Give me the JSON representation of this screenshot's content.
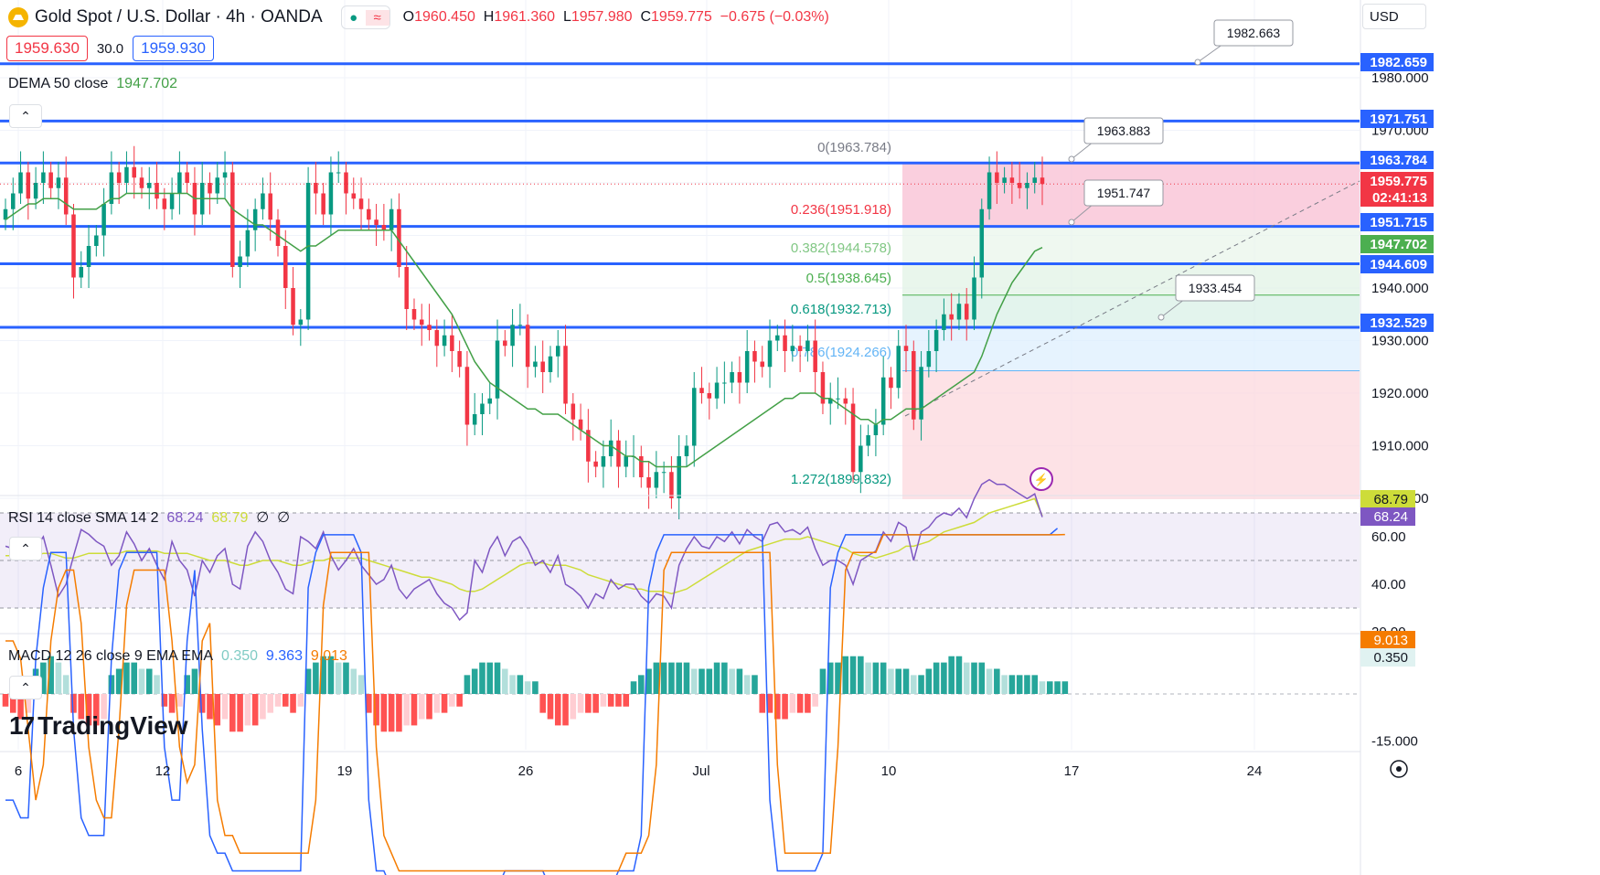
{
  "header": {
    "symbol_title": "Gold Spot / U.S. Dollar · 4h · OANDA",
    "open_label": "O",
    "open": "1960.450",
    "high_label": "H",
    "high": "1961.360",
    "low_label": "L",
    "low": "1957.980",
    "close_label": "C",
    "close": "1959.775",
    "change": "−0.675 (−0.03%)",
    "pill_icons": [
      "dot-icon",
      "wave-icon"
    ],
    "bid": "1959.630",
    "spread": "30.0",
    "ask": "1959.930",
    "currency": "USD"
  },
  "indicators": {
    "dema": {
      "label": "DEMA 50 close",
      "value": "1947.702"
    },
    "rsi": {
      "label": "RSI 14 close SMA 14 2",
      "rsi_value": "68.24",
      "sma_value": "68.79",
      "extra1": "∅",
      "extra2": "∅"
    },
    "macd": {
      "label": "MACD 12 26 close 9 EMA EMA",
      "hist": "0.350",
      "macd": "9.363",
      "signal": "9.013"
    }
  },
  "fib_labels": [
    {
      "text": "0(1963.784)",
      "color": "#787b86"
    },
    {
      "text": "0.236(1951.918)",
      "color": "#f23645"
    },
    {
      "text": "0.382(1944.578)",
      "color": "#81c784"
    },
    {
      "text": "0.5(1938.645)",
      "color": "#4caf50"
    },
    {
      "text": "0.618(1932.713)",
      "color": "#089981"
    },
    {
      "text": "0.786(1924.266)",
      "color": "#64b5f6"
    },
    {
      "text": "1.272(1899.832)",
      "color": "#089981"
    }
  ],
  "callouts": [
    "1982.663",
    "1963.883",
    "1951.747",
    "1933.454"
  ],
  "price_axis": {
    "ticks": [
      "1980.000",
      "1970.000",
      "1940.000",
      "1930.000",
      "1920.000",
      "1910.000",
      "1900.000"
    ],
    "markers": [
      {
        "value": "1982.659",
        "bg": "#2962ff"
      },
      {
        "value": "1971.751",
        "bg": "#2962ff"
      },
      {
        "value": "1963.784",
        "bg": "#2962ff"
      },
      {
        "value": "1959.775",
        "bg": "#f23645"
      },
      {
        "value": "02:41:13",
        "bg": "#f23645"
      },
      {
        "value": "1951.715",
        "bg": "#2962ff"
      },
      {
        "value": "1947.702",
        "bg": "#4caf50"
      },
      {
        "value": "1944.609",
        "bg": "#2962ff"
      },
      {
        "value": "1932.529",
        "bg": "#2962ff"
      }
    ]
  },
  "rsi_axis": {
    "ticks": [
      "60.00",
      "40.00",
      "20.00"
    ],
    "markers": [
      {
        "value": "68.79",
        "bg": "#cddc39",
        "fg": "#131722"
      },
      {
        "value": "68.24",
        "bg": "#7e57c2",
        "fg": "#ffffff"
      }
    ]
  },
  "macd_axis": {
    "ticks": [
      "-15.000"
    ],
    "markers": [
      {
        "value": "9.013",
        "bg": "#f57c00",
        "fg": "#ffffff"
      },
      {
        "value": "0.350",
        "bg": "#e0f2f1",
        "fg": "#131722"
      }
    ]
  },
  "time_axis": [
    "6",
    "12",
    "19",
    "26",
    "Jul",
    "10",
    "17",
    "24"
  ],
  "logo": "TradingView",
  "colors": {
    "up": "#089981",
    "down": "#f23645",
    "level": "#2962ff",
    "dema": "#43a047",
    "rsi": "#7e57c2",
    "rsi_sma": "#cddc39",
    "macd": "#2962ff",
    "signal": "#f57c00"
  },
  "chart_data": {
    "type": "candlestick",
    "y_range": [
      1898,
      1990
    ],
    "levels": [
      1982.659,
      1971.751,
      1963.784,
      1951.715,
      1944.609,
      1932.529
    ],
    "fib_levels": [
      1963.784,
      1951.918,
      1944.578,
      1938.645,
      1932.713,
      1924.266,
      1899.832
    ],
    "close_series": [
      1955,
      1958,
      1962,
      1957,
      1960,
      1962,
      1959,
      1961,
      1954,
      1942,
      1944,
      1948,
      1950,
      1956,
      1962,
      1960,
      1963,
      1961,
      1959,
      1960,
      1957,
      1955,
      1958,
      1962,
      1960,
      1954,
      1960,
      1958,
      1961,
      1962,
      1944,
      1946,
      1951,
      1955,
      1958,
      1953,
      1948,
      1940,
      1933,
      1934,
      1960,
      1958,
      1954,
      1962,
      1962,
      1958,
      1957,
      1955,
      1953,
      1952,
      1951,
      1955,
      1944,
      1936,
      1934,
      1933,
      1932,
      1929,
      1931,
      1928,
      1925,
      1914,
      1916,
      1918,
      1919,
      1930,
      1929,
      1933,
      1933,
      1925,
      1926,
      1924,
      1927,
      1929,
      1918,
      1915,
      1913,
      1907,
      1906,
      1908,
      1911,
      1906,
      1908,
      1908,
      1904,
      1902,
      1905,
      1905,
      1900,
      1908,
      1910,
      1921,
      1920,
      1919,
      1922,
      1922,
      1924,
      1922,
      1928,
      1926,
      1925,
      1930,
      1931,
      1928,
      1929,
      1928,
      1930,
      1924,
      1918,
      1919,
      1919,
      1918,
      1905,
      1910,
      1912,
      1914,
      1923,
      1921,
      1929,
      1928,
      1915,
      1925,
      1928,
      1932,
      1935,
      1934,
      1937,
      1934,
      1942,
      1955,
      1962,
      1960,
      1961,
      1960,
      1959,
      1960,
      1961,
      1959.775
    ],
    "dema_series": [
      1953,
      1954,
      1955,
      1956,
      1956,
      1957,
      1957,
      1957,
      1956,
      1955,
      1955,
      1955,
      1955,
      1956,
      1957,
      1957,
      1958,
      1958,
      1958,
      1958,
      1958,
      1958,
      1958,
      1958,
      1958,
      1957,
      1957,
      1957,
      1957,
      1957,
      1955,
      1954,
      1953,
      1952,
      1952,
      1951,
      1950,
      1949,
      1948,
      1947,
      1948,
      1948,
      1949,
      1950,
      1951,
      1951,
      1951,
      1951,
      1951,
      1951,
      1951,
      1951,
      1949,
      1947,
      1945,
      1943,
      1941,
      1939,
      1937,
      1935,
      1932,
      1929,
      1926,
      1924,
      1922,
      1921,
      1920,
      1919,
      1918,
      1917,
      1917,
      1916,
      1916,
      1916,
      1915,
      1914,
      1913,
      1912,
      1911,
      1910,
      1910,
      1909,
      1908,
      1908,
      1907,
      1907,
      1906,
      1906,
      1906,
      1906,
      1906,
      1907,
      1908,
      1909,
      1910,
      1911,
      1912,
      1913,
      1914,
      1915,
      1916,
      1917,
      1918,
      1919,
      1919,
      1920,
      1920,
      1920,
      1919,
      1919,
      1918,
      1917,
      1916,
      1915,
      1915,
      1914,
      1915,
      1915,
      1916,
      1917,
      1917,
      1917,
      1918,
      1919,
      1920,
      1921,
      1922,
      1923,
      1924,
      1927,
      1931,
      1935,
      1938,
      1941,
      1943,
      1945,
      1947,
      1947.702
    ],
    "rsi_series": [
      56,
      55,
      57,
      52,
      55,
      60,
      48,
      35,
      40,
      52,
      63,
      61,
      58,
      56,
      48,
      52,
      62,
      57,
      50,
      55,
      48,
      42,
      58,
      50,
      46,
      35,
      50,
      45,
      52,
      55,
      40,
      38,
      56,
      62,
      58,
      50,
      45,
      38,
      36,
      60,
      58,
      55,
      62,
      52,
      46,
      50,
      55,
      48,
      44,
      40,
      42,
      48,
      38,
      34,
      38,
      40,
      42,
      36,
      32,
      30,
      25,
      28,
      50,
      45,
      55,
      60,
      52,
      58,
      60,
      55,
      48,
      50,
      45,
      52,
      40,
      38,
      35,
      30,
      36,
      34,
      42,
      38,
      40,
      40,
      35,
      32,
      36,
      35,
      30,
      48,
      55,
      60,
      56,
      55,
      60,
      58,
      62,
      57,
      63,
      60,
      58,
      65,
      66,
      62,
      63,
      61,
      64,
      55,
      48,
      50,
      50,
      48,
      40,
      50,
      52,
      54,
      62,
      58,
      66,
      64,
      50,
      62,
      64,
      68,
      70,
      69,
      72,
      68,
      76,
      82,
      84,
      82,
      82,
      80,
      78,
      76,
      78,
      68.24
    ],
    "rsi_sma_series": [
      52,
      52,
      52,
      52,
      52,
      53,
      53,
      52,
      51,
      51,
      52,
      53,
      53,
      53,
      53,
      53,
      54,
      54,
      54,
      54,
      54,
      53,
      53,
      53,
      53,
      52,
      51,
      50,
      50,
      50,
      49,
      48,
      48,
      49,
      50,
      50,
      50,
      49,
      48,
      48,
      49,
      50,
      50,
      51,
      51,
      51,
      51,
      51,
      50,
      49,
      48,
      47,
      46,
      45,
      44,
      43,
      43,
      42,
      41,
      40,
      38,
      37,
      37,
      38,
      40,
      42,
      44,
      46,
      48,
      49,
      49,
      49,
      48,
      48,
      48,
      47,
      46,
      44,
      43,
      42,
      41,
      40,
      39,
      38,
      38,
      37,
      37,
      37,
      36,
      37,
      38,
      40,
      42,
      44,
      46,
      48,
      50,
      52,
      54,
      55,
      56,
      57,
      58,
      59,
      59,
      59,
      60,
      59,
      58,
      57,
      56,
      55,
      53,
      52,
      52,
      51,
      52,
      53,
      54,
      56,
      56,
      57,
      58,
      60,
      62,
      63,
      64,
      65,
      66,
      68,
      70,
      71,
      72,
      73,
      74,
      75,
      76,
      68.79
    ],
    "macd_hist_series": [
      -2,
      -3,
      -4,
      -3,
      4,
      5,
      6,
      5,
      3,
      -3,
      -4,
      -5,
      -5,
      -4,
      3,
      4,
      5,
      5,
      4,
      4,
      3,
      -2,
      -3,
      -2,
      3,
      4,
      -3,
      -4,
      -5,
      -4,
      -6,
      -6,
      -5,
      -5,
      -4,
      -3,
      -2,
      -2,
      -3,
      -2,
      4,
      5,
      6,
      6,
      5,
      5,
      4,
      3,
      -3,
      -5,
      -6,
      -6,
      -6,
      -5,
      -5,
      -4,
      -4,
      -3,
      -3,
      -2,
      -2,
      3,
      4,
      5,
      5,
      5,
      4,
      3,
      3,
      2,
      2,
      -3,
      -4,
      -5,
      -5,
      -4,
      -3,
      -3,
      -3,
      -2,
      -2,
      -2,
      -2,
      2,
      3,
      4,
      5,
      5,
      5,
      5,
      5,
      4,
      4,
      4,
      5,
      5,
      4,
      4,
      3,
      3,
      -3,
      -3,
      -4,
      -4,
      -3,
      -3,
      -3,
      -2,
      4,
      5,
      5,
      6,
      6,
      6,
      5,
      5,
      5,
      4,
      4,
      4,
      3,
      3,
      4,
      5,
      5,
      6,
      6,
      5,
      5,
      5,
      4,
      4,
      3,
      3,
      3,
      3,
      3,
      2,
      2,
      2,
      2
    ],
    "macd_line_series": [
      -6,
      -6,
      -7,
      -7,
      2,
      6,
      8,
      8,
      8,
      -2,
      -7,
      -8,
      -8,
      -8,
      2,
      7,
      8,
      8,
      8,
      8,
      8,
      -3,
      -6,
      -6,
      3,
      7,
      -2,
      -8,
      -9,
      -9,
      -10,
      -10,
      -10,
      -10,
      -10,
      -10,
      -10,
      -10,
      -10,
      -10,
      6,
      8,
      9,
      9,
      9,
      9,
      9,
      8,
      -6,
      -10,
      -10,
      -11,
      -11,
      -11,
      -11,
      -11,
      -11,
      -11,
      -11,
      -11,
      -11,
      -11,
      -11,
      -11,
      -11,
      -11,
      -10,
      -10,
      -10,
      -10,
      -10,
      -10,
      -11,
      -11,
      -11,
      -11,
      -11,
      -11,
      -11,
      -11,
      -11,
      -10,
      -10,
      -10,
      -8,
      6,
      8,
      9,
      9,
      9,
      9,
      9,
      9,
      9,
      9,
      9,
      9,
      9,
      9,
      9,
      9,
      -6,
      -10,
      -10,
      -10,
      -10,
      -10,
      -10,
      -9,
      6,
      8,
      9,
      9,
      9,
      9,
      9,
      9,
      9,
      9,
      9,
      9,
      9,
      9,
      9,
      9,
      9,
      9,
      9,
      9,
      9,
      9,
      9,
      9,
      9,
      9,
      9,
      9,
      9,
      9,
      9.363
    ],
    "macd_signal_series": [
      3,
      3,
      2,
      -2,
      -6,
      -4,
      3,
      6,
      7,
      7,
      4,
      -3,
      -6,
      -7,
      -7,
      -2,
      5,
      7,
      7,
      7,
      7,
      7,
      3,
      -3,
      -5,
      -4,
      3,
      4,
      -6,
      -8,
      -8,
      -9,
      -9,
      -9,
      -9,
      -9,
      -9,
      -9,
      -9,
      -9,
      -9,
      -6,
      5,
      8,
      8,
      8,
      8,
      8,
      8,
      -3,
      -8,
      -9,
      -10,
      -10,
      -10,
      -10,
      -10,
      -10,
      -10,
      -10,
      -10,
      -10,
      -10,
      -10,
      -10,
      -10,
      -10,
      -10,
      -10,
      -10,
      -10,
      -10,
      -10,
      -10,
      -10,
      -10,
      -10,
      -10,
      -10,
      -10,
      -10,
      -10,
      -9,
      -9,
      -9,
      -8,
      -4,
      7,
      8,
      8,
      8,
      8,
      8,
      8,
      8,
      8,
      8,
      8,
      8,
      8,
      8,
      8,
      -4,
      -9,
      -9,
      -9,
      -9,
      -9,
      -9,
      -9,
      -3,
      7,
      8,
      8,
      8,
      8,
      9,
      9,
      9,
      9,
      9,
      9,
      9,
      9,
      9,
      9,
      9,
      9,
      9,
      9,
      9,
      9,
      9,
      9,
      9,
      9,
      9,
      9,
      9,
      9,
      9.013
    ]
  }
}
